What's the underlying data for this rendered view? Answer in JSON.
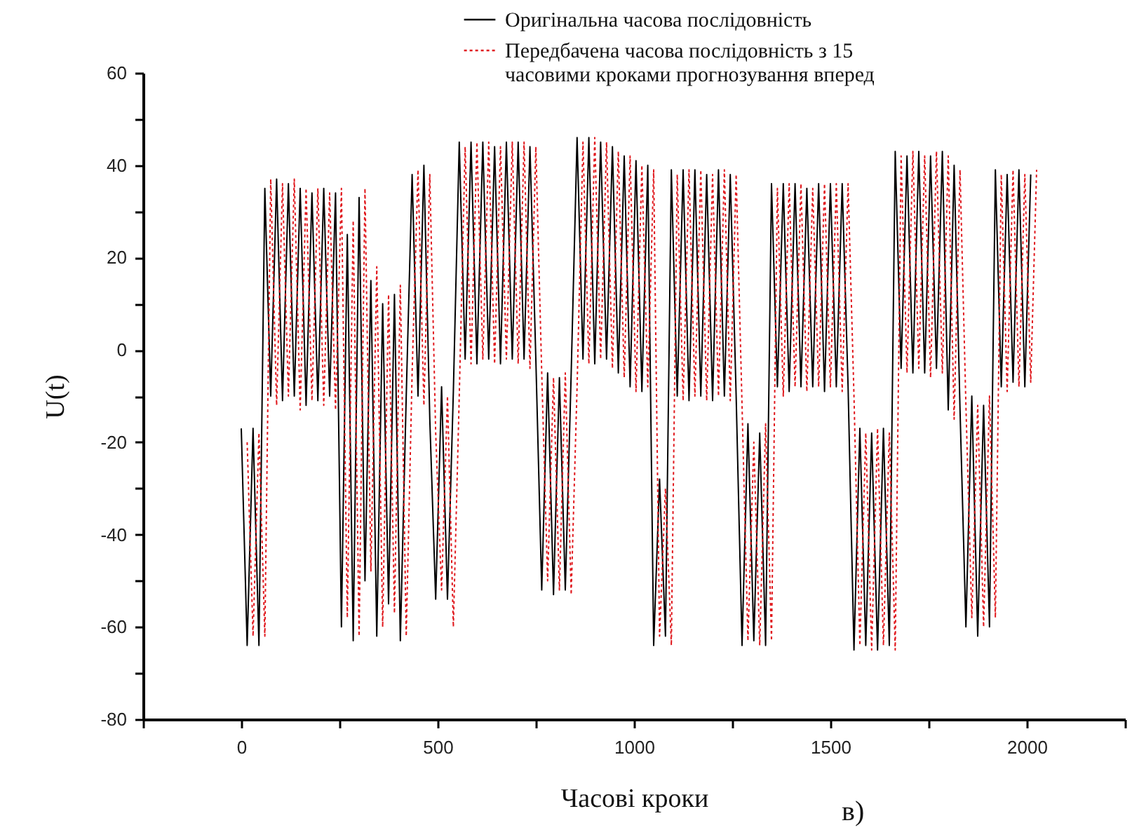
{
  "chart_data": {
    "type": "line",
    "xlabel": "Часові кроки",
    "ylabel": "U(t)",
    "annotations": [
      "в)"
    ],
    "legend": "top right",
    "grid": false,
    "xlim": [
      -250,
      2250
    ],
    "xticks": [
      {
        "value": -250,
        "label": null
      },
      0,
      {
        "value": 250,
        "label": null
      },
      500,
      {
        "value": 750,
        "label": null
      },
      1000,
      {
        "value": 1250,
        "label": null
      },
      1500,
      {
        "value": 1750,
        "label": null
      },
      2000,
      {
        "value": 2250,
        "label": null
      }
    ],
    "ylim": [
      -80,
      60
    ],
    "yticks": [
      -80,
      {
        "value": -70,
        "label": null
      },
      -60,
      {
        "value": -50,
        "label": null
      },
      -40,
      {
        "value": -30,
        "label": null
      },
      -20,
      {
        "value": -10,
        "label": null
      },
      0,
      {
        "value": 10,
        "label": null
      },
      20,
      {
        "value": 30,
        "label": null
      },
      40,
      {
        "value": 50,
        "label": null
      },
      60
    ],
    "x": [
      0,
      15,
      30,
      45,
      60,
      75,
      90,
      105,
      120,
      135,
      150,
      165,
      180,
      195,
      210,
      225,
      240,
      255,
      270,
      285,
      300,
      315,
      330,
      345,
      360,
      375,
      390,
      405,
      420,
      435,
      450,
      465,
      480,
      495,
      510,
      525,
      540,
      555,
      570,
      585,
      600,
      615,
      630,
      645,
      660,
      675,
      690,
      705,
      720,
      735,
      750,
      765,
      780,
      795,
      810,
      825,
      840,
      855,
      870,
      885,
      900,
      915,
      930,
      945,
      960,
      975,
      990,
      1005,
      1020,
      1035,
      1050,
      1065,
      1080,
      1095,
      1110,
      1125,
      1140,
      1155,
      1170,
      1185,
      1200,
      1215,
      1230,
      1245,
      1260,
      1275,
      1290,
      1305,
      1320,
      1335,
      1350,
      1365,
      1380,
      1395,
      1410,
      1425,
      1440,
      1455,
      1470,
      1485,
      1500,
      1515,
      1530,
      1545,
      1560,
      1575,
      1590,
      1605,
      1620,
      1635,
      1650,
      1665,
      1680,
      1695,
      1710,
      1725,
      1740,
      1755,
      1770,
      1785,
      1800,
      1815,
      1830,
      1845,
      1860,
      1875,
      1890,
      1905,
      1920,
      1935,
      1950,
      1965,
      1980,
      1995,
      2010
    ],
    "series": [
      {
        "name": "Оригінальна часова послідовність",
        "color": "#000000",
        "line_style": "solid",
        "values": [
          -17,
          -64,
          -17,
          -64,
          35,
          -10,
          37,
          -11,
          36,
          -10,
          35,
          -12,
          34,
          -11,
          35,
          -10,
          34,
          -60,
          25,
          -63,
          33,
          -50,
          15,
          -62,
          10,
          -55,
          12,
          -63,
          -10,
          38,
          -10,
          40,
          -15,
          -54,
          -8,
          -54,
          -9,
          45,
          -2,
          45,
          -3,
          45,
          -2,
          44,
          -3,
          45,
          -2,
          45,
          -2,
          44,
          -2,
          -52,
          -5,
          -53,
          -6,
          -52,
          -5,
          46,
          -2,
          46,
          -3,
          45,
          -2,
          44,
          -5,
          42,
          -8,
          41,
          -9,
          40,
          -64,
          -28,
          -62,
          39,
          -10,
          39,
          -11,
          39,
          -10,
          38,
          -11,
          39,
          -10,
          38,
          -10,
          -64,
          -16,
          -63,
          -18,
          -64,
          36,
          -8,
          36,
          -9,
          36,
          -8,
          35,
          -8,
          36,
          -9,
          36,
          -8,
          36,
          -8,
          -65,
          -17,
          -64,
          -18,
          -65,
          -17,
          -64,
          43,
          -4,
          42,
          -5,
          43,
          -5,
          42,
          -4,
          43,
          -13,
          40,
          -13,
          -60,
          -10,
          -62,
          -12,
          -60,
          39,
          -8,
          38,
          -7,
          39,
          -8,
          38
        ]
      },
      {
        "name": "Передбачена часова послідовність з 15 часовими кроками прогнозування вперед",
        "color": "#e0191e",
        "line_style": "dotted",
        "x": [
          15,
          30,
          45,
          60,
          75,
          90,
          105,
          120,
          135,
          150,
          165,
          180,
          195,
          210,
          225,
          240,
          255,
          270,
          285,
          300,
          315,
          330,
          345,
          360,
          375,
          390,
          405,
          420,
          435,
          450,
          465,
          480,
          495,
          510,
          525,
          540,
          555,
          570,
          585,
          600,
          615,
          630,
          645,
          660,
          675,
          690,
          705,
          720,
          735,
          750,
          765,
          780,
          795,
          810,
          825,
          840,
          855,
          870,
          885,
          900,
          915,
          930,
          945,
          960,
          975,
          990,
          1005,
          1020,
          1035,
          1050,
          1065,
          1080,
          1095,
          1110,
          1125,
          1140,
          1155,
          1170,
          1185,
          1200,
          1215,
          1230,
          1245,
          1260,
          1275,
          1290,
          1305,
          1320,
          1335,
          1350,
          1365,
          1380,
          1395,
          1410,
          1425,
          1440,
          1455,
          1470,
          1485,
          1500,
          1515,
          1530,
          1545,
          1560,
          1575,
          1590,
          1605,
          1620,
          1635,
          1650,
          1665,
          1680,
          1695,
          1710,
          1725,
          1740,
          1755,
          1770,
          1785,
          1800,
          1815,
          1830,
          1845,
          1860,
          1875,
          1890,
          1905,
          1920,
          1935,
          1950,
          1965,
          1980,
          1995,
          2010,
          2025
        ],
        "values": [
          -20,
          -62,
          -18,
          -62,
          37,
          -12,
          36,
          -10,
          37,
          -13,
          35,
          -11,
          35,
          -12,
          34,
          -13,
          35,
          -58,
          28,
          -62,
          35,
          -48,
          18,
          -60,
          12,
          -57,
          14,
          -62,
          -5,
          39,
          -12,
          38,
          -18,
          -52,
          -10,
          -60,
          -10,
          44,
          -3,
          45,
          -2,
          45,
          -3,
          44,
          -2,
          45,
          -3,
          45,
          -4,
          44,
          -5,
          -50,
          -6,
          -52,
          -5,
          -53,
          -8,
          45,
          -3,
          46,
          -2,
          45,
          -4,
          43,
          -6,
          42,
          -9,
          40,
          -8,
          39,
          -62,
          -30,
          -64,
          38,
          -11,
          39,
          -10,
          39,
          -11,
          38,
          -10,
          39,
          -11,
          38,
          -12,
          -63,
          -20,
          -64,
          -16,
          -63,
          35,
          -10,
          36,
          -8,
          36,
          -9,
          35,
          -8,
          36,
          -8,
          36,
          -9,
          36,
          -10,
          -64,
          -18,
          -65,
          -17,
          -64,
          -18,
          -65,
          42,
          -5,
          43,
          -4,
          42,
          -6,
          43,
          -5,
          42,
          -15,
          39,
          -12,
          -58,
          -12,
          -60,
          -10,
          -58,
          38,
          -9,
          39,
          -8,
          38,
          -7,
          39
        ]
      }
    ]
  }
}
